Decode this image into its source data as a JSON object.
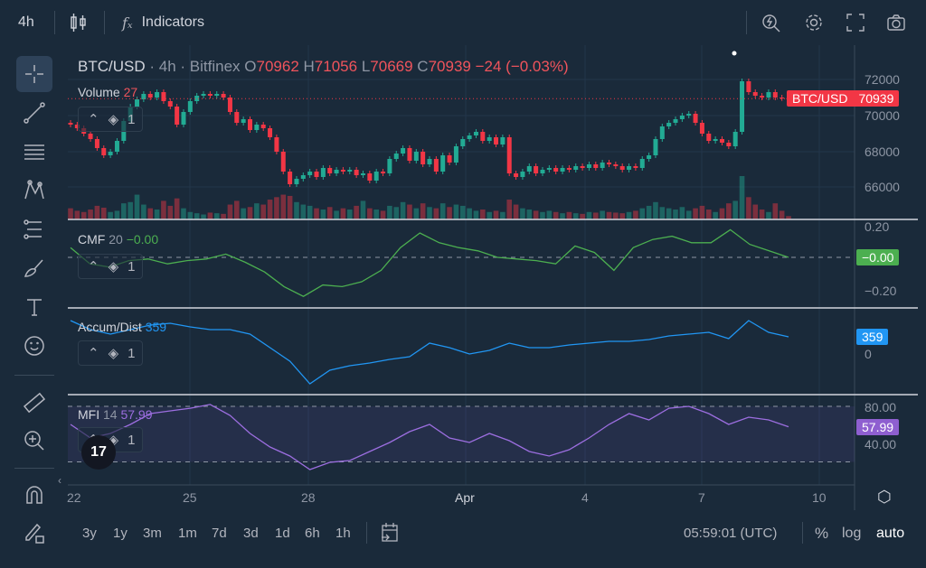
{
  "toolbar": {
    "interval": "4h",
    "indicators": "Indicators",
    "icons": [
      "candles-icon",
      "fx-icon",
      "alert-search-icon",
      "gear-icon",
      "fullscreen-icon",
      "camera-icon"
    ]
  },
  "legend": {
    "symbol": "BTC/USD",
    "interval": "· 4h ·",
    "exchange": "Bitfinex",
    "o_label": "O",
    "o": "70962",
    "h_label": "H",
    "h": "71056",
    "l_label": "L",
    "l": "70669",
    "c_label": "C",
    "c": "70939",
    "change": "−24 (−0.03%)"
  },
  "volume": {
    "label": "Volume",
    "value": "27"
  },
  "price_tag": {
    "symbol": "BTC/USD",
    "value": "70939"
  },
  "colors": {
    "up": "#22ab94",
    "down": "#f23645",
    "cmf": "#4caf50",
    "ad": "#2196f3",
    "mfi": "#8e5fd0",
    "bg": "#1a2a3a"
  },
  "price_axis": [
    "72000",
    "70000",
    "68000",
    "66000"
  ],
  "cmf": {
    "label": "CMF",
    "period": "20",
    "value": "−0.00",
    "axis": [
      "0.20",
      "−0.20"
    ],
    "tag": "−0.00"
  },
  "ad": {
    "label": "Accum/Dist",
    "value": "359",
    "axis": [
      "0"
    ],
    "tag": "359"
  },
  "mfi": {
    "label": "MFI",
    "period": "14",
    "value": "57.99",
    "axis": [
      "80.00",
      "40.00"
    ],
    "tag": "57.99"
  },
  "pane_controls": {
    "count": "1"
  },
  "time_axis": [
    "22",
    "25",
    "28",
    "Apr",
    "4",
    "7",
    "10"
  ],
  "bottom": {
    "ranges": [
      "3y",
      "1y",
      "3m",
      "1m",
      "7d",
      "3d",
      "1d",
      "6h",
      "1h"
    ],
    "time": "05:59:01 (UTC)",
    "percent": "%",
    "log": "log",
    "auto": "auto"
  },
  "chart_data": {
    "type": "candlestick",
    "closes": [
      69500,
      69300,
      69000,
      68700,
      68200,
      67800,
      68000,
      68600,
      69700,
      70500,
      70900,
      71200,
      71000,
      71300,
      70800,
      70500,
      69500,
      70200,
      70800,
      71100,
      71200,
      71100,
      71200,
      71000,
      70200,
      69600,
      69800,
      69200,
      69500,
      69300,
      68800,
      68000,
      66900,
      66200,
      66500,
      66700,
      66900,
      66600,
      67100,
      66800,
      67000,
      66900,
      67000,
      66700,
      66800,
      66400,
      66900,
      66800,
      67600,
      67900,
      68200,
      67500,
      68000,
      67300,
      67600,
      66900,
      67800,
      67400,
      68300,
      68700,
      68900,
      69100,
      68600,
      68800,
      68400,
      68800,
      66800,
      66600,
      66900,
      67200,
      66800,
      67000,
      67100,
      66900,
      67100,
      67000,
      67200,
      67100,
      67300,
      67100,
      67400,
      67300,
      67200,
      67000,
      67200,
      67100,
      67600,
      67800,
      68700,
      69400,
      69600,
      69800,
      70000,
      70100,
      69600,
      69000,
      68600,
      68700,
      68500,
      68300,
      69100,
      71900,
      71300,
      71100,
      71000,
      71300,
      71000,
      70962,
      70939
    ],
    "volumes": [
      90,
      70,
      60,
      80,
      110,
      95,
      60,
      70,
      130,
      140,
      200,
      120,
      90,
      80,
      150,
      110,
      170,
      90,
      60,
      50,
      40,
      55,
      50,
      45,
      120,
      150,
      90,
      100,
      130,
      120,
      160,
      180,
      200,
      190,
      140,
      120,
      110,
      90,
      80,
      100,
      70,
      90,
      80,
      110,
      150,
      90,
      80,
      70,
      110,
      100,
      140,
      120,
      90,
      130,
      100,
      90,
      130,
      100,
      120,
      110,
      90,
      70,
      80,
      60,
      70,
      60,
      160,
      120,
      90,
      80,
      70,
      60,
      70,
      60,
      50,
      60,
      50,
      45,
      60,
      55,
      70,
      60,
      55,
      50,
      60,
      70,
      90,
      110,
      140,
      100,
      90,
      80,
      100,
      70,
      90,
      110,
      80,
      60,
      90,
      130,
      150,
      350,
      180,
      120,
      80,
      60,
      130,
      70,
      27
    ],
    "price_range": [
      65200,
      73000
    ],
    "cmf_values": [
      0.06,
      -0.04,
      -0.06,
      -0.02,
      -0.01,
      -0.04,
      -0.02,
      -0.01,
      0.02,
      -0.03,
      -0.09,
      -0.18,
      -0.24,
      -0.17,
      -0.18,
      -0.15,
      -0.08,
      0.06,
      0.15,
      0.09,
      0.06,
      0.04,
      0.0,
      -0.01,
      -0.02,
      -0.04,
      0.07,
      0.03,
      -0.08,
      0.06,
      0.11,
      0.13,
      0.09,
      0.09,
      0.17,
      0.08,
      0.04,
      0.0
    ],
    "cmf_range": [
      -0.3,
      0.24
    ],
    "ad_values": [
      699,
      510,
      416,
      510,
      605,
      643,
      567,
      510,
      510,
      416,
      132,
      -151,
      -624,
      -340,
      -246,
      -189,
      -113,
      -57,
      227,
      132,
      0,
      76,
      227,
      132,
      132,
      189,
      227,
      265,
      265,
      302,
      378,
      416,
      454,
      321,
      699,
      454,
      359
    ],
    "ad_range": [
      -850,
      900
    ],
    "mfi_values": [
      60.5,
      45.9,
      50.7,
      60.5,
      72.2,
      75.1,
      78.0,
      82,
      70.2,
      50.7,
      36.1,
      26.3,
      11.7,
      19.5,
      21.5,
      31.2,
      41,
      52.7,
      60.5,
      45.9,
      41,
      50.7,
      42.9,
      31.2,
      26.3,
      33.2,
      45.9,
      60.5,
      72.2,
      65.4,
      78,
      80,
      72.2,
      60.5,
      68.3,
      65.4,
      57.99
    ],
    "mfi_levels": [
      80,
      20
    ]
  }
}
